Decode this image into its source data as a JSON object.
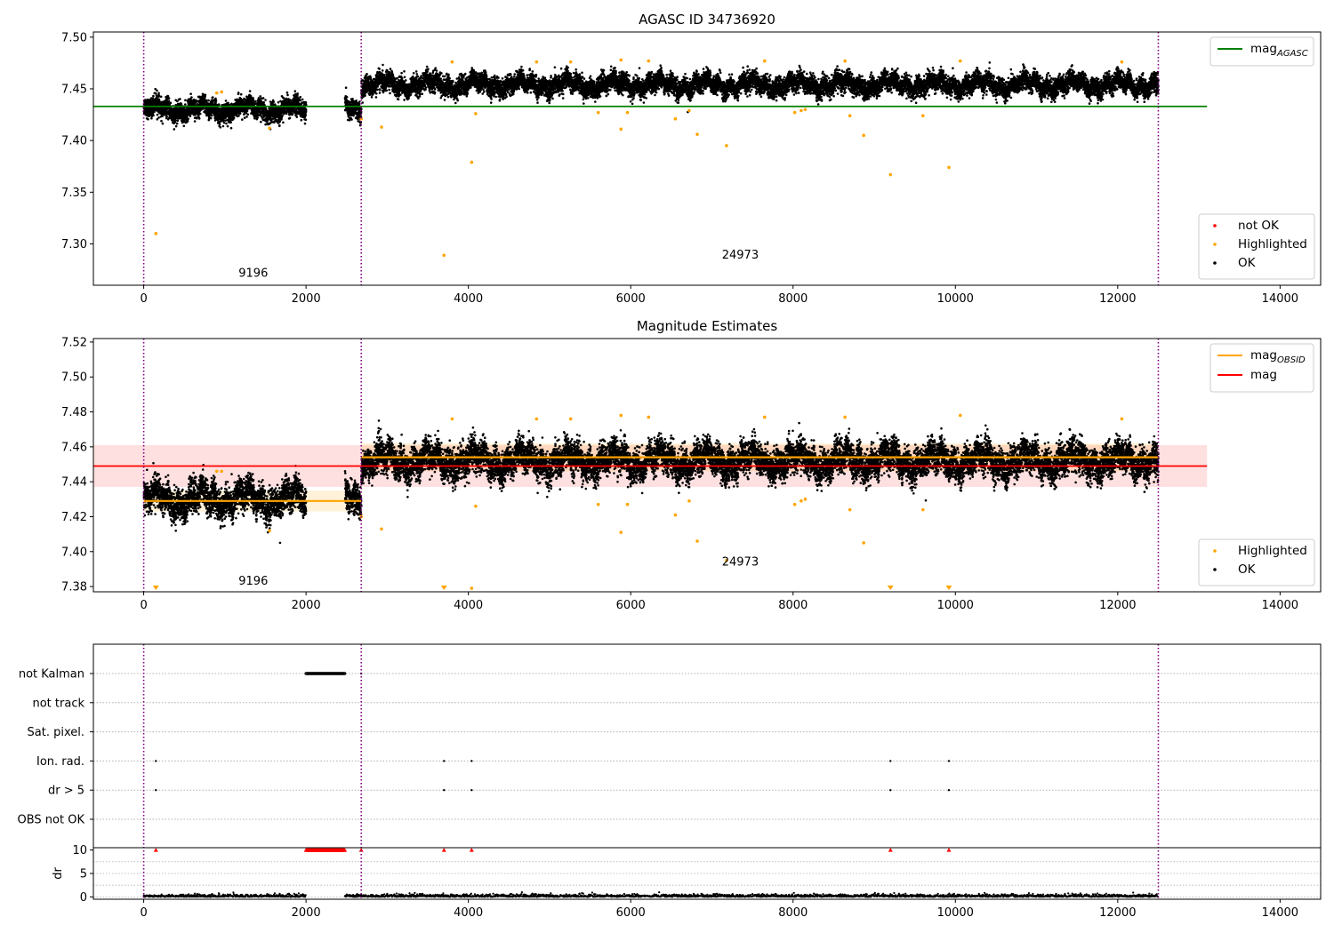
{
  "chart_data": [
    {
      "id": "top",
      "type": "scatter",
      "title": "AGASC ID 34736920",
      "xlabel": "",
      "ylabel": "",
      "xlim": [
        -620,
        14500
      ],
      "ylim": [
        7.26,
        7.505
      ],
      "xticks": [
        "0",
        "2000",
        "4000",
        "6000",
        "8000",
        "10000",
        "12000",
        "14000"
      ],
      "yticks": [
        "7.30",
        "7.35",
        "7.40",
        "7.45",
        "7.50"
      ],
      "vlines": [
        0,
        2680,
        12500
      ],
      "hline": {
        "y": 7.433,
        "color": "#008000",
        "x_range": [
          -620,
          13100
        ]
      },
      "segments": [
        {
          "x_start": 0,
          "x_end": 2000,
          "center": 7.43,
          "label": ""
        },
        {
          "x_start": 2480,
          "x_end": 2680,
          "center": 7.432,
          "label": ""
        },
        {
          "x_start": 2680,
          "x_end": 12500,
          "center": 7.454,
          "label": ""
        }
      ],
      "annotations": [
        {
          "text": "9196",
          "x": 1350,
          "y": 7.268
        },
        {
          "text": "24973",
          "x": 7350,
          "y": 7.286
        }
      ],
      "line_legend": [
        {
          "label": "mag",
          "sub": "AGASC",
          "color": "#008000"
        }
      ],
      "point_legend": [
        {
          "label": "not OK",
          "color": "#ff0000"
        },
        {
          "label": "Highlighted",
          "color": "#ffa500"
        },
        {
          "label": "OK",
          "color": "#000000"
        }
      ],
      "highlighted": [
        {
          "x": 150,
          "y": 7.31
        },
        {
          "x": 900,
          "y": 7.446
        },
        {
          "x": 960,
          "y": 7.447
        },
        {
          "x": 1550,
          "y": 7.412
        },
        {
          "x": 2680,
          "y": 7.421
        },
        {
          "x": 2930,
          "y": 7.413
        },
        {
          "x": 3700,
          "y": 7.289
        },
        {
          "x": 3800,
          "y": 7.476
        },
        {
          "x": 4040,
          "y": 7.379
        },
        {
          "x": 4090,
          "y": 7.426
        },
        {
          "x": 4840,
          "y": 7.476
        },
        {
          "x": 5260,
          "y": 7.476
        },
        {
          "x": 5600,
          "y": 7.427
        },
        {
          "x": 5880,
          "y": 7.411
        },
        {
          "x": 5880,
          "y": 7.478
        },
        {
          "x": 5960,
          "y": 7.427
        },
        {
          "x": 6220,
          "y": 7.477
        },
        {
          "x": 6550,
          "y": 7.421
        },
        {
          "x": 6720,
          "y": 7.429
        },
        {
          "x": 6820,
          "y": 7.406
        },
        {
          "x": 7180,
          "y": 7.395
        },
        {
          "x": 7650,
          "y": 7.477
        },
        {
          "x": 8020,
          "y": 7.427
        },
        {
          "x": 8100,
          "y": 7.429
        },
        {
          "x": 8150,
          "y": 7.43
        },
        {
          "x": 8640,
          "y": 7.477
        },
        {
          "x": 8700,
          "y": 7.424
        },
        {
          "x": 8870,
          "y": 7.405
        },
        {
          "x": 9200,
          "y": 7.367
        },
        {
          "x": 9600,
          "y": 7.424
        },
        {
          "x": 9920,
          "y": 7.374
        },
        {
          "x": 10060,
          "y": 7.477
        },
        {
          "x": 12050,
          "y": 7.476
        }
      ]
    },
    {
      "id": "mid",
      "type": "scatter",
      "title": "Magnitude Estimates",
      "xlabel": "",
      "ylabel": "",
      "xlim": [
        -620,
        14500
      ],
      "ylim": [
        7.377,
        7.522
      ],
      "xticks": [
        "0",
        "2000",
        "4000",
        "6000",
        "8000",
        "10000",
        "12000",
        "14000"
      ],
      "yticks": [
        "7.38",
        "7.40",
        "7.42",
        "7.44",
        "7.46",
        "7.48",
        "7.50",
        "7.52"
      ],
      "vlines": [
        0,
        2680,
        12500
      ],
      "mag": {
        "value": 7.449,
        "err": 0.012,
        "x_range": [
          -620,
          13100
        ],
        "color": "#ff0000"
      },
      "obsid_mags": [
        {
          "x_start": 0,
          "x_end": 2680,
          "value": 7.429,
          "err": 0.006
        },
        {
          "x_start": 2680,
          "x_end": 12500,
          "value": 7.454,
          "err": 0.008
        }
      ],
      "segments": [
        {
          "x_start": 0,
          "x_end": 2000,
          "center": 7.43,
          "label": ""
        },
        {
          "x_start": 2480,
          "x_end": 2680,
          "center": 7.432,
          "label": ""
        },
        {
          "x_start": 2680,
          "x_end": 12500,
          "center": 7.452,
          "label": ""
        }
      ],
      "annotations": [
        {
          "text": "9196",
          "x": 1350,
          "y": 7.381
        },
        {
          "text": "24973",
          "x": 7350,
          "y": 7.392
        }
      ],
      "line_legend": [
        {
          "label": "mag",
          "sub": "OBSID",
          "color": "#ffa500"
        },
        {
          "label": "mag",
          "sub": "",
          "color": "#ff0000"
        }
      ],
      "point_legend": [
        {
          "label": "Highlighted",
          "color": "#ffa500"
        },
        {
          "label": "OK",
          "color": "#000000"
        }
      ],
      "down_markers": [
        150,
        3700,
        9200,
        9920
      ],
      "highlighted": [
        {
          "x": 900,
          "y": 7.446
        },
        {
          "x": 960,
          "y": 7.446
        },
        {
          "x": 1550,
          "y": 7.412
        },
        {
          "x": 2680,
          "y": 7.42
        },
        {
          "x": 2930,
          "y": 7.413
        },
        {
          "x": 3800,
          "y": 7.476
        },
        {
          "x": 4040,
          "y": 7.379
        },
        {
          "x": 4090,
          "y": 7.426
        },
        {
          "x": 4840,
          "y": 7.476
        },
        {
          "x": 5260,
          "y": 7.476
        },
        {
          "x": 5600,
          "y": 7.427
        },
        {
          "x": 5880,
          "y": 7.411
        },
        {
          "x": 5880,
          "y": 7.478
        },
        {
          "x": 5960,
          "y": 7.427
        },
        {
          "x": 6220,
          "y": 7.477
        },
        {
          "x": 6550,
          "y": 7.421
        },
        {
          "x": 6720,
          "y": 7.429
        },
        {
          "x": 6820,
          "y": 7.406
        },
        {
          "x": 7180,
          "y": 7.395
        },
        {
          "x": 7650,
          "y": 7.477
        },
        {
          "x": 8020,
          "y": 7.427
        },
        {
          "x": 8100,
          "y": 7.429
        },
        {
          "x": 8150,
          "y": 7.43
        },
        {
          "x": 8640,
          "y": 7.477
        },
        {
          "x": 8700,
          "y": 7.424
        },
        {
          "x": 8870,
          "y": 7.405
        },
        {
          "x": 9600,
          "y": 7.424
        },
        {
          "x": 10060,
          "y": 7.478
        },
        {
          "x": 12050,
          "y": 7.476
        }
      ]
    },
    {
      "id": "flags",
      "type": "scatter",
      "title": "",
      "xlim": [
        -620,
        14500
      ],
      "xticks": [
        "0",
        "2000",
        "4000",
        "6000",
        "8000",
        "10000",
        "12000",
        "14000"
      ],
      "vlines": [
        0,
        2680,
        12500
      ],
      "rows": [
        "not Kalman",
        "not track",
        "Sat. pixel.",
        "Ion. rad.",
        "dr > 5",
        "OBS not OK"
      ],
      "flag_points": [
        {
          "row": "not Kalman",
          "x_start": 2000,
          "x_end": 2480
        },
        {
          "row": "not Kalman",
          "x": 2680
        },
        {
          "row": "Ion. rad.",
          "x": 150
        },
        {
          "row": "Ion. rad.",
          "x": 3700
        },
        {
          "row": "Ion. rad.",
          "x": 4040
        },
        {
          "row": "Ion. rad.",
          "x": 9200
        },
        {
          "row": "Ion. rad.",
          "x": 9920
        },
        {
          "row": "dr > 5",
          "x": 150
        },
        {
          "row": "dr > 5",
          "x": 3700
        },
        {
          "row": "dr > 5",
          "x": 4040
        },
        {
          "row": "dr > 5",
          "x": 9200
        },
        {
          "row": "dr > 5",
          "x": 9920
        }
      ],
      "dr": {
        "ylabel": "dr",
        "ylim": [
          -0.5,
          10.5
        ],
        "yticks": [
          "0",
          "5",
          "10"
        ],
        "clipped_x": [
          150,
          2680,
          3700,
          4040,
          9200,
          9920
        ],
        "clipped_range": [
          2000,
          2480
        ]
      }
    }
  ]
}
